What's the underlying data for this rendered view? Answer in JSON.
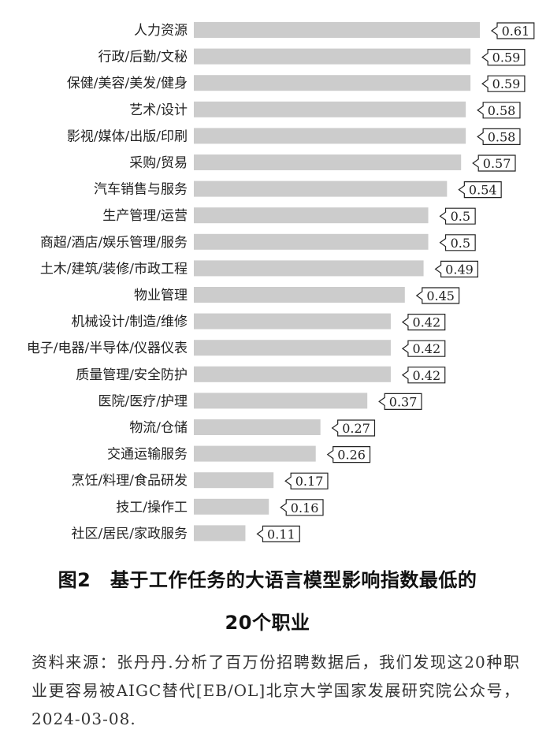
{
  "chart_data": {
    "type": "bar",
    "orientation": "horizontal",
    "categories": [
      "人力资源",
      "行政/后勤/文秘",
      "保健/美容/美发/健身",
      "艺术/设计",
      "影视/媒体/出版/印刷",
      "采购/贸易",
      "汽车销售与服务",
      "生产管理/运营",
      "商超/酒店/娱乐管理/服务",
      "土木/建筑/装修/市政工程",
      "物业管理",
      "机械设计/制造/维修",
      "电子/电器/半导体/仪器仪表",
      "质量管理/安全防护",
      "医院/医疗/护理",
      "物流/仓储",
      "交通运输服务",
      "烹饪/料理/食品研发",
      "技工/操作工",
      "社区/居民/家政服务"
    ],
    "values": [
      0.61,
      0.59,
      0.59,
      0.58,
      0.58,
      0.57,
      0.54,
      0.5,
      0.5,
      0.49,
      0.45,
      0.42,
      0.42,
      0.42,
      0.37,
      0.27,
      0.26,
      0.17,
      0.16,
      0.11
    ],
    "value_labels": [
      "0.61",
      "0.59",
      "0.59",
      "0.58",
      "0.58",
      "0.57",
      "0.54",
      "0.5",
      "0.5",
      "0.49",
      "0.45",
      "0.42",
      "0.42",
      "0.42",
      "0.37",
      "0.27",
      "0.26",
      "0.17",
      "0.16",
      "0.11"
    ],
    "bar_color": "#cccccc",
    "grid": false,
    "legend": false,
    "xlim": [
      0,
      0.61
    ]
  },
  "caption": {
    "line1": "图2　基于工作任务的大语言模型影响指数最低的",
    "line2": "20个职业"
  },
  "source_note": "资料来源：张丹丹.分析了百万份招聘数据后，我们发现这20种职业更容易被AIGC替代[EB/OL]北京大学国家发展研究院公众号，2024-03-08."
}
